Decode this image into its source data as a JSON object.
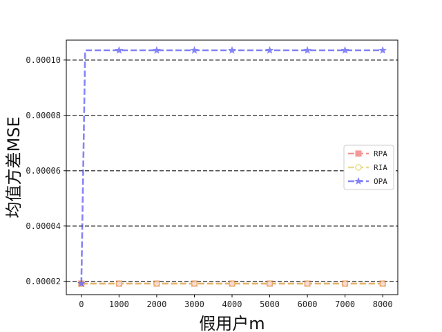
{
  "chart_data": {
    "type": "line",
    "title": "",
    "xlabel": "假用户m",
    "ylabel": "均值方差MSE",
    "xlim": [
      -400,
      8400
    ],
    "ylim": [
      1.52e-05,
      0.0001072
    ],
    "x_ticks": [
      0,
      1000,
      2000,
      3000,
      4000,
      5000,
      6000,
      7000,
      8000
    ],
    "x_tick_labels": [
      "0",
      "1000",
      "2000",
      "3000",
      "4000",
      "5000",
      "6000",
      "7000",
      "8000"
    ],
    "y_ticks": [
      2e-05,
      4e-05,
      6e-05,
      8e-05,
      0.0001
    ],
    "y_tick_labels": [
      "0.00002",
      "0.00004",
      "0.00006",
      "0.00008",
      "0.00010"
    ],
    "grid": "horizontal dashed",
    "legend_position": "right",
    "x": [
      0,
      100,
      1000,
      2000,
      3000,
      4000,
      5000,
      6000,
      7000,
      8000
    ],
    "series": [
      {
        "name": "RPA",
        "color": "#f05a5a",
        "marker": "square",
        "values": [
          1.92e-05,
          1.92e-05,
          1.92e-05,
          1.92e-05,
          1.92e-05,
          1.92e-05,
          1.92e-05,
          1.92e-05,
          1.92e-05,
          1.92e-05
        ]
      },
      {
        "name": "RIA",
        "color": "#d9c84a",
        "marker": "circle-open",
        "values": [
          1.92e-05,
          1.92e-05,
          1.92e-05,
          1.92e-05,
          1.92e-05,
          1.92e-05,
          1.92e-05,
          1.92e-05,
          1.92e-05,
          1.92e-05
        ]
      },
      {
        "name": "OPA",
        "color": "#3a3af0",
        "marker": "star",
        "values": [
          1.92e-05,
          0.0001035,
          0.0001035,
          0.0001035,
          0.0001035,
          0.0001035,
          0.0001035,
          0.0001035,
          0.0001035,
          0.0001035
        ]
      }
    ]
  }
}
